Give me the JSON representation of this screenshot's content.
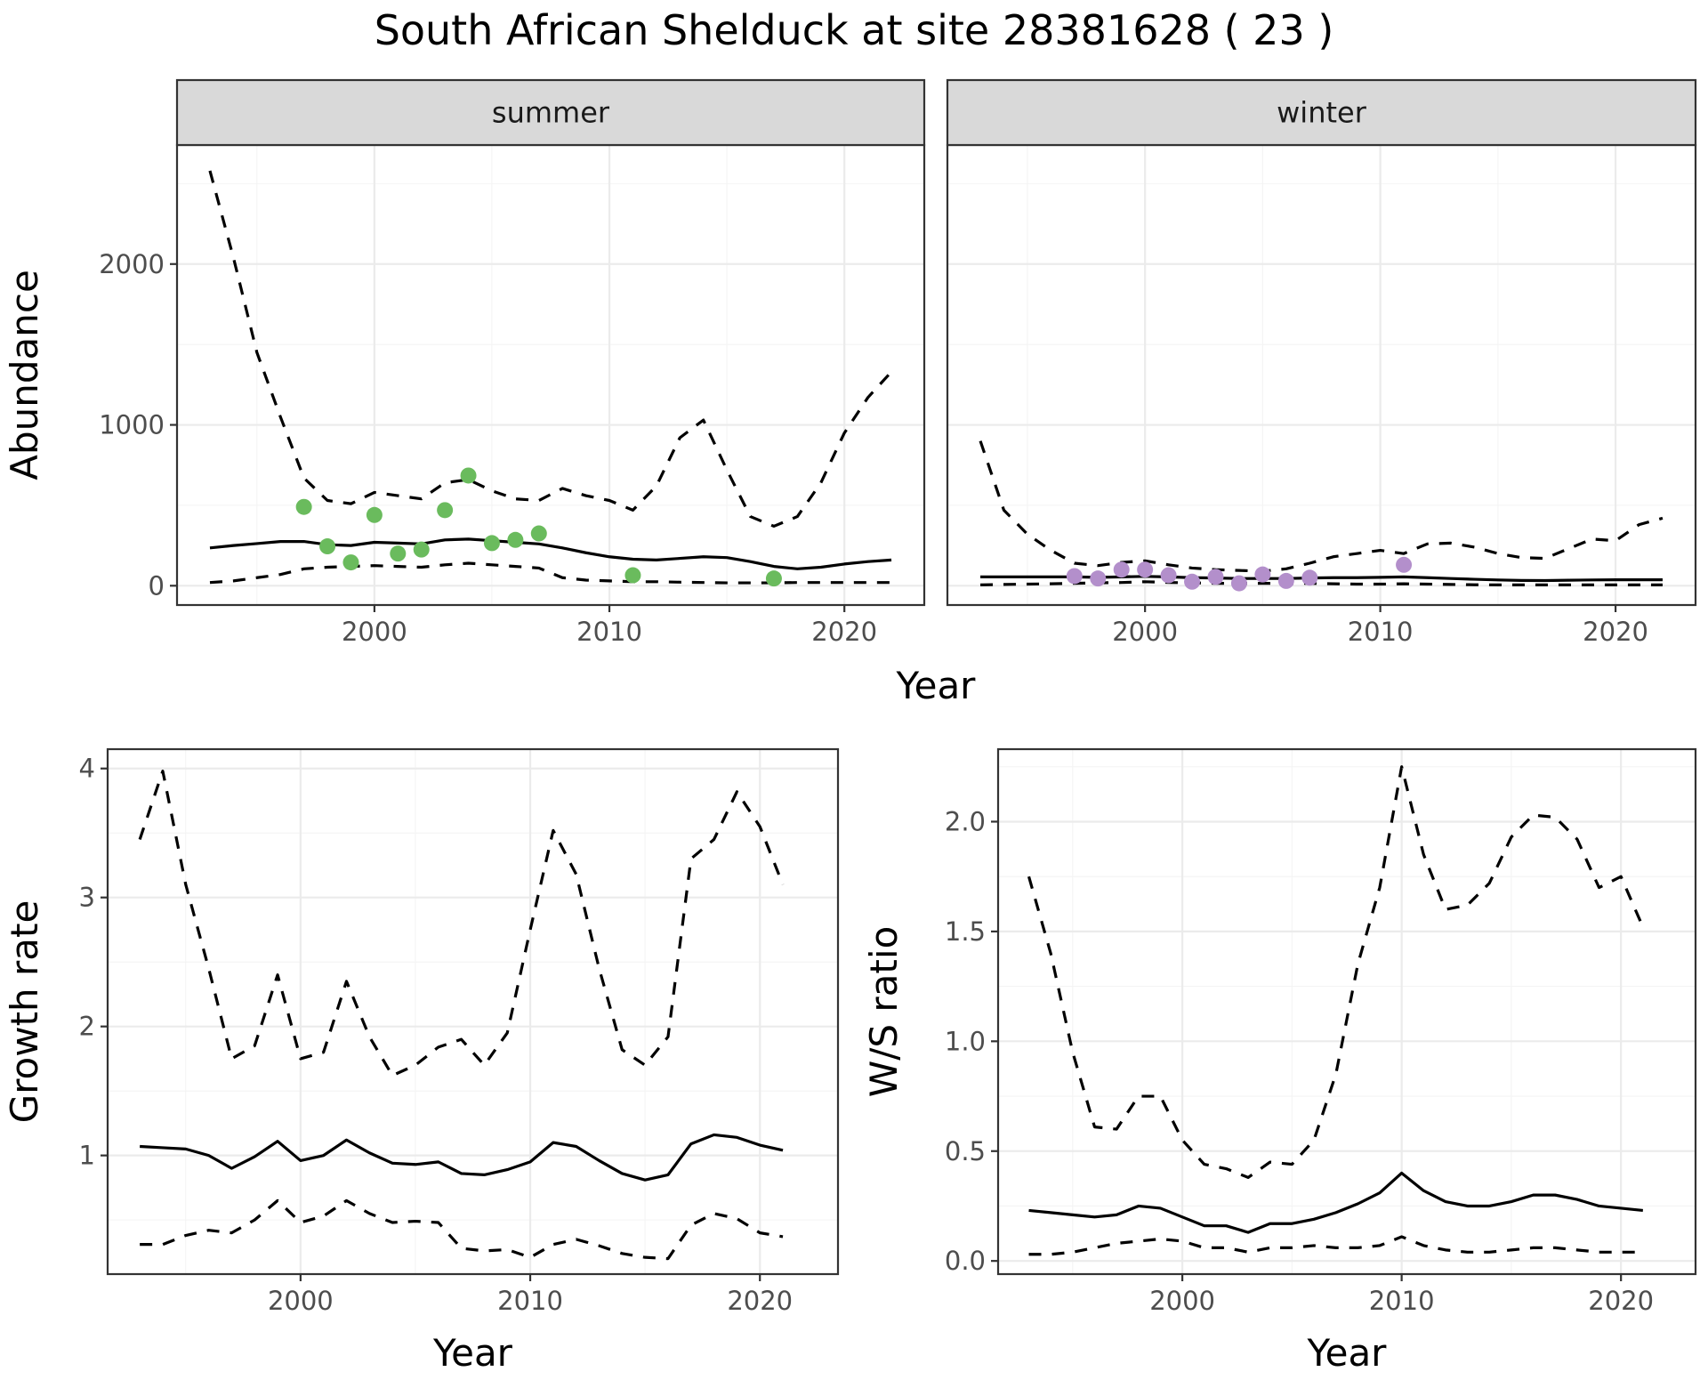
{
  "title": "South African Shelduck at site 28381628 ( 23 )",
  "colors": {
    "summer_points": "#6abb5d",
    "winter_points": "#b38fcb",
    "lines": "#000000",
    "strip": "#d9d9d9"
  },
  "chart_data": [
    {
      "id": "abundance",
      "type": "line",
      "ylabel": "Abundance",
      "xlabel": "Year",
      "xlim": [
        1991.6,
        2023.4
      ],
      "ylim": [
        -120,
        2740
      ],
      "x_ticks": [
        2000,
        2010,
        2020
      ],
      "y_ticks": [
        0,
        1000,
        2000
      ],
      "facets": [
        {
          "label": "summer",
          "point_color": "#6abb5d",
          "x": [
            1993,
            1994,
            1995,
            1996,
            1997,
            1998,
            1999,
            2000,
            2001,
            2002,
            2003,
            2004,
            2005,
            2006,
            2007,
            2008,
            2009,
            2010,
            2011,
            2012,
            2013,
            2014,
            2015,
            2016,
            2017,
            2018,
            2019,
            2020,
            2021,
            2022
          ],
          "fit": [
            235,
            250,
            262,
            275,
            275,
            255,
            250,
            270,
            265,
            260,
            285,
            290,
            280,
            270,
            260,
            235,
            205,
            180,
            165,
            160,
            170,
            180,
            175,
            150,
            120,
            105,
            115,
            135,
            150,
            160
          ],
          "upper": [
            2580,
            2040,
            1450,
            1050,
            670,
            530,
            510,
            580,
            560,
            540,
            640,
            660,
            590,
            540,
            530,
            605,
            560,
            530,
            470,
            620,
            920,
            1030,
            720,
            430,
            370,
            430,
            640,
            950,
            1170,
            1330
          ],
          "lower": [
            20,
            30,
            50,
            70,
            105,
            115,
            120,
            125,
            120,
            115,
            130,
            140,
            130,
            120,
            110,
            50,
            35,
            30,
            25,
            25,
            22,
            20,
            18,
            18,
            18,
            20,
            20,
            20,
            20,
            20
          ],
          "points": {
            "x": [
              1997,
              1998,
              1999,
              2000,
              2001,
              2002,
              2003,
              2004,
              2005,
              2006,
              2007,
              2011,
              2017
            ],
            "y": [
              490,
              245,
              145,
              440,
              200,
              225,
              470,
              685,
              265,
              285,
              325,
              65,
              45
            ]
          }
        },
        {
          "label": "winter",
          "point_color": "#b38fcb",
          "x": [
            1993,
            1994,
            1995,
            1996,
            1997,
            1998,
            1999,
            2000,
            2001,
            2002,
            2003,
            2004,
            2005,
            2006,
            2007,
            2008,
            2009,
            2010,
            2011,
            2012,
            2013,
            2014,
            2015,
            2016,
            2017,
            2018,
            2019,
            2020,
            2021,
            2022
          ],
          "fit": [
            55,
            55,
            55,
            55,
            55,
            52,
            55,
            58,
            55,
            50,
            48,
            45,
            45,
            45,
            48,
            50,
            50,
            52,
            55,
            50,
            45,
            40,
            36,
            33,
            32,
            34,
            36,
            37,
            37,
            37
          ],
          "upper": [
            900,
            470,
            320,
            220,
            140,
            125,
            145,
            155,
            130,
            110,
            100,
            95,
            90,
            105,
            140,
            180,
            200,
            220,
            200,
            260,
            265,
            240,
            200,
            175,
            170,
            230,
            290,
            280,
            380,
            420
          ],
          "lower": [
            5,
            8,
            10,
            12,
            15,
            18,
            20,
            25,
            20,
            18,
            15,
            15,
            15,
            15,
            15,
            12,
            10,
            10,
            12,
            10,
            8,
            6,
            5,
            5,
            5,
            5,
            5,
            5,
            5,
            5
          ],
          "points": {
            "x": [
              1997,
              1998,
              1999,
              2000,
              2001,
              2002,
              2003,
              2004,
              2005,
              2006,
              2007,
              2011
            ],
            "y": [
              60,
              45,
              100,
              100,
              65,
              25,
              55,
              15,
              70,
              30,
              50,
              130
            ]
          }
        }
      ]
    },
    {
      "id": "growth",
      "type": "line",
      "ylabel": "Growth rate",
      "xlabel": "Year",
      "xlim": [
        1991.6,
        2023.4
      ],
      "ylim": [
        0.08,
        4.15
      ],
      "x_ticks": [
        2000,
        2010,
        2020
      ],
      "y_ticks": [
        1,
        2,
        3,
        4
      ],
      "x": [
        1993,
        1994,
        1995,
        1996,
        1997,
        1998,
        1999,
        2000,
        2001,
        2002,
        2003,
        2004,
        2005,
        2006,
        2007,
        2008,
        2009,
        2010,
        2011,
        2012,
        2013,
        2014,
        2015,
        2016,
        2017,
        2018,
        2019,
        2020,
        2021
      ],
      "fit": [
        1.07,
        1.06,
        1.05,
        1.0,
        0.9,
        0.99,
        1.11,
        0.96,
        1.0,
        1.12,
        1.02,
        0.94,
        0.93,
        0.95,
        0.86,
        0.85,
        0.89,
        0.95,
        1.1,
        1.07,
        0.96,
        0.86,
        0.81,
        0.85,
        1.09,
        1.16,
        1.14,
        1.08,
        1.04
      ],
      "upper": [
        3.45,
        3.98,
        3.1,
        2.45,
        1.75,
        1.85,
        2.4,
        1.75,
        1.8,
        2.35,
        1.92,
        1.62,
        1.7,
        1.84,
        1.9,
        1.7,
        1.95,
        2.75,
        3.52,
        3.18,
        2.45,
        1.82,
        1.7,
        1.92,
        3.3,
        3.45,
        3.82,
        3.55,
        3.1
      ],
      "lower": [
        0.31,
        0.31,
        0.38,
        0.42,
        0.4,
        0.5,
        0.65,
        0.48,
        0.53,
        0.65,
        0.55,
        0.48,
        0.49,
        0.48,
        0.28,
        0.26,
        0.27,
        0.21,
        0.31,
        0.35,
        0.3,
        0.24,
        0.21,
        0.2,
        0.46,
        0.55,
        0.51,
        0.4,
        0.37
      ]
    },
    {
      "id": "ratio",
      "type": "line",
      "ylabel": "W/S ratio",
      "xlabel": "Year",
      "xlim": [
        1991.6,
        2023.4
      ],
      "ylim": [
        -0.06,
        2.33
      ],
      "x_ticks": [
        2000,
        2010,
        2020
      ],
      "y_ticks": [
        0.0,
        0.5,
        1.0,
        1.5,
        2.0
      ],
      "y_tick_labels": [
        "0.0",
        "0.5",
        "1.0",
        "1.5",
        "2.0"
      ],
      "x": [
        1993,
        1994,
        1995,
        1996,
        1997,
        1998,
        1999,
        2000,
        2001,
        2002,
        2003,
        2004,
        2005,
        2006,
        2007,
        2008,
        2009,
        2010,
        2011,
        2012,
        2013,
        2014,
        2015,
        2016,
        2017,
        2018,
        2019,
        2020,
        2021
      ],
      "fit": [
        0.23,
        0.22,
        0.21,
        0.2,
        0.21,
        0.25,
        0.24,
        0.2,
        0.16,
        0.16,
        0.13,
        0.17,
        0.17,
        0.19,
        0.22,
        0.26,
        0.31,
        0.4,
        0.32,
        0.27,
        0.25,
        0.25,
        0.27,
        0.3,
        0.3,
        0.28,
        0.25,
        0.24,
        0.23
      ],
      "upper": [
        1.75,
        1.4,
        0.95,
        0.61,
        0.6,
        0.75,
        0.75,
        0.55,
        0.44,
        0.42,
        0.38,
        0.45,
        0.44,
        0.55,
        0.85,
        1.35,
        1.7,
        2.25,
        1.85,
        1.6,
        1.62,
        1.72,
        1.93,
        2.03,
        2.02,
        1.92,
        1.7,
        1.75,
        1.52
      ],
      "lower": [
        0.03,
        0.03,
        0.04,
        0.06,
        0.08,
        0.09,
        0.1,
        0.09,
        0.06,
        0.06,
        0.04,
        0.06,
        0.06,
        0.07,
        0.06,
        0.06,
        0.07,
        0.11,
        0.07,
        0.05,
        0.04,
        0.04,
        0.05,
        0.06,
        0.06,
        0.05,
        0.04,
        0.04,
        0.04
      ]
    }
  ]
}
